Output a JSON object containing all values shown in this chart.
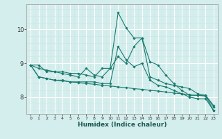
{
  "xlabel": "Humidex (Indice chaleur)",
  "x": [
    0,
    1,
    2,
    3,
    4,
    5,
    6,
    7,
    8,
    9,
    10,
    11,
    12,
    13,
    14,
    15,
    16,
    17,
    18,
    19,
    20,
    21,
    22,
    23
  ],
  "series": [
    [
      8.95,
      8.95,
      8.75,
      8.75,
      8.75,
      8.7,
      8.7,
      8.65,
      8.6,
      8.85,
      8.85,
      10.5,
      10.05,
      9.75,
      9.75,
      9.05,
      8.95,
      8.65,
      8.4,
      8.2,
      8.05,
      8.05,
      8.05,
      7.7
    ],
    [
      8.95,
      8.85,
      8.8,
      8.75,
      8.7,
      8.65,
      8.6,
      8.85,
      8.65,
      8.6,
      8.85,
      9.2,
      9.0,
      9.5,
      9.75,
      8.6,
      8.5,
      8.4,
      8.35,
      8.3,
      8.25,
      8.1,
      8.05,
      7.75
    ],
    [
      8.95,
      8.6,
      8.55,
      8.5,
      8.5,
      8.45,
      8.45,
      8.45,
      8.45,
      8.4,
      8.4,
      9.5,
      9.1,
      8.9,
      9.0,
      8.5,
      8.35,
      8.3,
      8.2,
      8.1,
      8.0,
      7.95,
      7.95,
      7.6
    ],
    [
      8.95,
      8.6,
      8.55,
      8.5,
      8.48,
      8.45,
      8.43,
      8.4,
      8.38,
      8.35,
      8.33,
      8.3,
      8.28,
      8.25,
      8.23,
      8.2,
      8.18,
      8.15,
      8.12,
      8.1,
      8.07,
      8.05,
      8.03,
      7.6
    ]
  ],
  "line_color": "#1a7a6e",
  "bg_color": "#d4eeed",
  "grid_major_color": "#ffffff",
  "grid_minor_color": "#c8e8e6",
  "ylim": [
    7.5,
    10.75
  ],
  "yticks": [
    8,
    9,
    10
  ],
  "xlim": [
    -0.5,
    23.5
  ]
}
